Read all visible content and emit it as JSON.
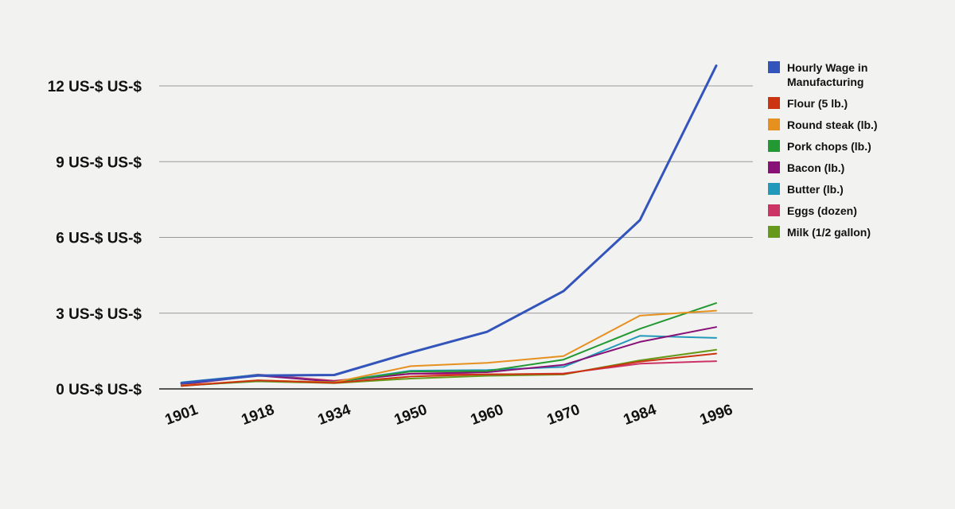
{
  "chart_data": {
    "type": "line",
    "title": "",
    "xlabel": "",
    "ylabel": "",
    "x": [
      "1901",
      "1918",
      "1934",
      "1950",
      "1960",
      "1970",
      "1984",
      "1996"
    ],
    "y_ticks": [
      {
        "value": 0,
        "label": "0 US-$ US-$"
      },
      {
        "value": 3,
        "label": "3 US-$ US-$"
      },
      {
        "value": 6,
        "label": "6 US-$ US-$"
      },
      {
        "value": 9,
        "label": "9 US-$ US-$"
      },
      {
        "value": 12,
        "label": "12 US-$ US-$"
      }
    ],
    "ylim": [
      0,
      14.5
    ],
    "grid": true,
    "legend_position": "right",
    "series": [
      {
        "name": "Hourly Wage in Manufacturing",
        "color": "#3355bb",
        "values": [
          0.23,
          0.53,
          0.55,
          1.44,
          2.26,
          3.87,
          6.68,
          12.8
        ]
      },
      {
        "name": "Flour (5 lb.)",
        "color": "#cc3311",
        "values": [
          0.12,
          0.34,
          0.24,
          0.49,
          0.58,
          0.59,
          1.08,
          1.4
        ]
      },
      {
        "name": "Round steak (lb.)",
        "color": "#e69020",
        "values": [
          0.14,
          0.34,
          0.26,
          0.9,
          1.03,
          1.3,
          2.9,
          3.1
        ]
      },
      {
        "name": "Pork chops (lb.)",
        "color": "#229933",
        "values": [
          0.12,
          0.32,
          0.27,
          0.69,
          0.71,
          1.16,
          2.38,
          3.4
        ]
      },
      {
        "name": "Bacon (lb.)",
        "color": "#881177",
        "values": [
          0.17,
          0.53,
          0.29,
          0.6,
          0.66,
          0.95,
          1.86,
          2.45
        ]
      },
      {
        "name": "Butter (lb.)",
        "color": "#2299bb",
        "values": [
          0.26,
          0.56,
          0.28,
          0.72,
          0.75,
          0.87,
          2.1,
          2.02
        ]
      },
      {
        "name": "Eggs (dozen)",
        "color": "#cc3366",
        "values": [
          0.21,
          0.57,
          0.32,
          0.6,
          0.57,
          0.61,
          1.0,
          1.1
        ]
      },
      {
        "name": "Milk (1/2 gallon)",
        "color": "#66991a",
        "values": [
          0.14,
          0.3,
          0.23,
          0.41,
          0.52,
          0.57,
          1.13,
          1.55
        ]
      }
    ]
  }
}
